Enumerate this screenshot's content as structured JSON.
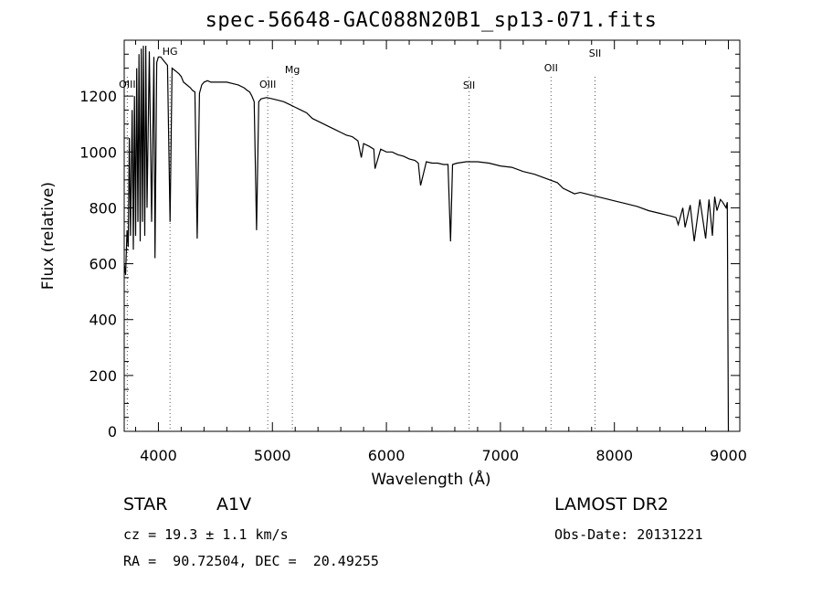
{
  "title": "spec-56648-GAC088N20B1_sp13-071.fits",
  "footer": {
    "class_label": "STAR",
    "subclass": "A1V",
    "survey": "LAMOST DR2",
    "cz": "cz = 19.3 ± 1.1 km/s",
    "obs_date": "Obs-Date: 20131221",
    "radec": "RA =  90.72504, DEC =  20.49255"
  },
  "chart_data": {
    "type": "line",
    "title": "spec-56648-GAC088N20B1_sp13-071.fits",
    "xlabel": "Wavelength (Å)",
    "ylabel": "Flux (relative)",
    "xlim": [
      3700,
      9100
    ],
    "ylim": [
      0,
      1400
    ],
    "xticks": [
      4000,
      5000,
      6000,
      7000,
      8000,
      9000
    ],
    "yticks": [
      0,
      200,
      400,
      600,
      800,
      1000,
      1200
    ],
    "grid": false,
    "line_color": "#000000",
    "marker_color": "#555555",
    "line_markers": [
      {
        "label": "OIII",
        "x": 3727
      },
      {
        "label": "HG",
        "x": 4102
      },
      {
        "label": "OIII",
        "x": 4959
      },
      {
        "label": "Mg",
        "x": 5175
      },
      {
        "label": "SII",
        "x": 6725
      },
      {
        "label": "OII",
        "x": 7444
      },
      {
        "label": "SII",
        "x": 7830
      }
    ],
    "series": [
      {
        "x": [
          3700,
          3712,
          3725,
          3735,
          3745,
          3755,
          3770,
          3780,
          3790,
          3800,
          3810,
          3820,
          3830,
          3840,
          3850,
          3860,
          3868,
          3880,
          3889,
          3900,
          3920,
          3940,
          3960,
          3970,
          3985,
          4000,
          4020,
          4040,
          4060,
          4080,
          4102,
          4120,
          4150,
          4180,
          4200,
          4220,
          4250,
          4280,
          4300,
          4320,
          4340,
          4360,
          4380,
          4400,
          4430,
          4460,
          4500,
          4550,
          4600,
          4650,
          4700,
          4750,
          4780,
          4800,
          4820,
          4840,
          4861,
          4880,
          4900,
          4950,
          5000,
          5050,
          5100,
          5150,
          5200,
          5250,
          5300,
          5350,
          5400,
          5450,
          5500,
          5550,
          5600,
          5650,
          5700,
          5750,
          5780,
          5800,
          5850,
          5890,
          5900,
          5950,
          6000,
          6050,
          6100,
          6150,
          6200,
          6250,
          6280,
          6300,
          6350,
          6400,
          6450,
          6500,
          6540,
          6563,
          6580,
          6620,
          6700,
          6800,
          6900,
          7000,
          7100,
          7200,
          7300,
          7400,
          7500,
          7550,
          7600,
          7650,
          7700,
          7750,
          7800,
          7850,
          7900,
          8000,
          8100,
          8200,
          8300,
          8400,
          8450,
          8500,
          8540,
          8560,
          8600,
          8620,
          8665,
          8700,
          8750,
          8800,
          8830,
          8860,
          8880,
          8900,
          8930,
          8950,
          8980,
          8990,
          9000
        ],
        "y": [
          600,
          560,
          720,
          660,
          1050,
          700,
          1150,
          650,
          1200,
          700,
          1300,
          750,
          1350,
          680,
          1370,
          750,
          1380,
          700,
          1380,
          800,
          1360,
          750,
          1340,
          620,
          1320,
          1340,
          1340,
          1330,
          1320,
          1310,
          750,
          1300,
          1290,
          1280,
          1270,
          1250,
          1240,
          1230,
          1220,
          1215,
          690,
          1210,
          1240,
          1250,
          1255,
          1250,
          1250,
          1250,
          1250,
          1245,
          1240,
          1230,
          1220,
          1215,
          1200,
          1180,
          720,
          1180,
          1190,
          1195,
          1190,
          1185,
          1180,
          1170,
          1160,
          1150,
          1140,
          1120,
          1110,
          1100,
          1090,
          1080,
          1070,
          1060,
          1055,
          1040,
          980,
          1030,
          1020,
          1010,
          940,
          1010,
          1000,
          1000,
          990,
          985,
          975,
          970,
          960,
          880,
          965,
          960,
          960,
          955,
          955,
          680,
          955,
          960,
          965,
          965,
          960,
          950,
          945,
          930,
          920,
          905,
          890,
          870,
          860,
          850,
          855,
          850,
          845,
          840,
          835,
          825,
          815,
          805,
          790,
          780,
          775,
          770,
          765,
          740,
          800,
          730,
          810,
          680,
          830,
          690,
          830,
          700,
          840,
          790,
          830,
          820,
          800,
          820,
          0
        ]
      }
    ]
  }
}
